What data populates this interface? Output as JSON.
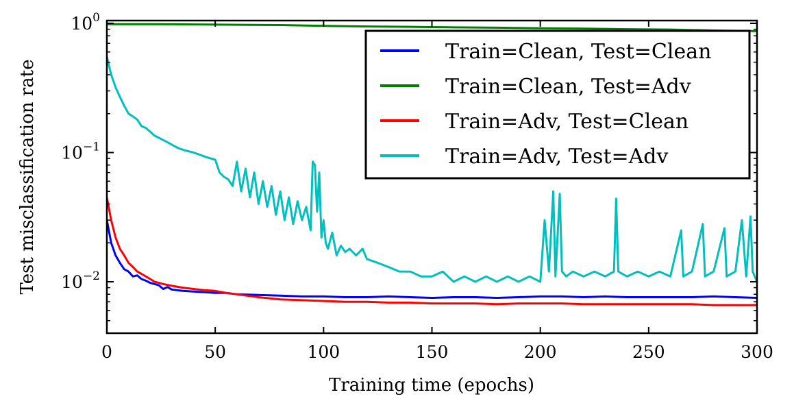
{
  "chart_data": {
    "type": "line",
    "xlabel": "Training time (epochs)",
    "ylabel": "Test misclassification rate",
    "xlim": [
      0,
      300
    ],
    "ylim": [
      0.004,
      1.05
    ],
    "yscale": "log",
    "x_ticks": [
      0,
      50,
      100,
      150,
      200,
      250,
      300
    ],
    "y_ticks": [
      {
        "value": 1,
        "base": "10",
        "exp": "0"
      },
      {
        "value": 0.1,
        "base": "10",
        "exp": "−1"
      },
      {
        "value": 0.01,
        "base": "10",
        "exp": "−2"
      }
    ],
    "grid": false,
    "legend_position": "top-right",
    "series": [
      {
        "name": "Train=Clean, Test=Clean",
        "color": "#0000ff",
        "points": [
          [
            0,
            0.03
          ],
          [
            2,
            0.02
          ],
          [
            4,
            0.016
          ],
          [
            6,
            0.014
          ],
          [
            8,
            0.0125
          ],
          [
            10,
            0.012
          ],
          [
            12,
            0.011
          ],
          [
            14,
            0.0112
          ],
          [
            16,
            0.0105
          ],
          [
            18,
            0.0102
          ],
          [
            20,
            0.0098
          ],
          [
            22,
            0.0096
          ],
          [
            24,
            0.0094
          ],
          [
            26,
            0.0088
          ],
          [
            28,
            0.0091
          ],
          [
            30,
            0.0087
          ],
          [
            35,
            0.0085
          ],
          [
            40,
            0.0084
          ],
          [
            45,
            0.0083
          ],
          [
            50,
            0.0082
          ],
          [
            55,
            0.0082
          ],
          [
            60,
            0.008
          ],
          [
            70,
            0.0079
          ],
          [
            80,
            0.0078
          ],
          [
            90,
            0.0077
          ],
          [
            100,
            0.0077
          ],
          [
            110,
            0.0076
          ],
          [
            120,
            0.0076
          ],
          [
            130,
            0.0077
          ],
          [
            140,
            0.0076
          ],
          [
            150,
            0.0075
          ],
          [
            160,
            0.0076
          ],
          [
            170,
            0.0076
          ],
          [
            180,
            0.0075
          ],
          [
            190,
            0.0076
          ],
          [
            200,
            0.0077
          ],
          [
            210,
            0.0077
          ],
          [
            220,
            0.0076
          ],
          [
            230,
            0.0077
          ],
          [
            240,
            0.0076
          ],
          [
            250,
            0.0076
          ],
          [
            260,
            0.0076
          ],
          [
            270,
            0.0076
          ],
          [
            280,
            0.0077
          ],
          [
            290,
            0.0076
          ],
          [
            300,
            0.0075
          ]
        ]
      },
      {
        "name": "Train=Clean, Test=Adv",
        "color": "#008000",
        "points": [
          [
            0,
            0.985
          ],
          [
            20,
            0.985
          ],
          [
            40,
            0.98
          ],
          [
            60,
            0.975
          ],
          [
            80,
            0.97
          ],
          [
            100,
            0.955
          ],
          [
            120,
            0.945
          ],
          [
            140,
            0.94
          ],
          [
            160,
            0.93
          ],
          [
            180,
            0.925
          ],
          [
            200,
            0.915
          ],
          [
            220,
            0.91
          ],
          [
            240,
            0.9
          ],
          [
            260,
            0.895
          ],
          [
            280,
            0.88
          ],
          [
            300,
            0.87
          ]
        ]
      },
      {
        "name": "Train=Adv, Test=Clean",
        "color": "#ff0000",
        "points": [
          [
            0,
            0.045
          ],
          [
            2,
            0.03
          ],
          [
            4,
            0.022
          ],
          [
            6,
            0.018
          ],
          [
            8,
            0.016
          ],
          [
            10,
            0.014
          ],
          [
            12,
            0.013
          ],
          [
            14,
            0.012
          ],
          [
            16,
            0.0115
          ],
          [
            18,
            0.011
          ],
          [
            20,
            0.0105
          ],
          [
            22,
            0.01
          ],
          [
            24,
            0.0098
          ],
          [
            26,
            0.0096
          ],
          [
            30,
            0.0093
          ],
          [
            35,
            0.009
          ],
          [
            40,
            0.0088
          ],
          [
            45,
            0.0086
          ],
          [
            50,
            0.0085
          ],
          [
            55,
            0.0082
          ],
          [
            60,
            0.008
          ],
          [
            70,
            0.0076
          ],
          [
            80,
            0.0073
          ],
          [
            90,
            0.0072
          ],
          [
            100,
            0.0071
          ],
          [
            110,
            0.007
          ],
          [
            120,
            0.007
          ],
          [
            130,
            0.0069
          ],
          [
            140,
            0.0069
          ],
          [
            150,
            0.0068
          ],
          [
            160,
            0.0068
          ],
          [
            170,
            0.0068
          ],
          [
            180,
            0.0067
          ],
          [
            190,
            0.0068
          ],
          [
            200,
            0.0068
          ],
          [
            210,
            0.0068
          ],
          [
            220,
            0.0067
          ],
          [
            230,
            0.0067
          ],
          [
            240,
            0.0067
          ],
          [
            250,
            0.0067
          ],
          [
            260,
            0.0067
          ],
          [
            270,
            0.0067
          ],
          [
            280,
            0.0066
          ],
          [
            290,
            0.0066
          ],
          [
            300,
            0.0066
          ]
        ]
      },
      {
        "name": "Train=Adv, Test=Adv",
        "color": "#00bfbf",
        "points": [
          [
            0,
            0.55
          ],
          [
            2,
            0.4
          ],
          [
            4,
            0.32
          ],
          [
            6,
            0.27
          ],
          [
            8,
            0.23
          ],
          [
            10,
            0.2
          ],
          [
            12,
            0.19
          ],
          [
            14,
            0.18
          ],
          [
            16,
            0.16
          ],
          [
            18,
            0.155
          ],
          [
            20,
            0.145
          ],
          [
            22,
            0.135
          ],
          [
            24,
            0.13
          ],
          [
            26,
            0.125
          ],
          [
            28,
            0.12
          ],
          [
            30,
            0.115
          ],
          [
            33,
            0.108
          ],
          [
            36,
            0.104
          ],
          [
            40,
            0.1
          ],
          [
            43,
            0.096
          ],
          [
            46,
            0.092
          ],
          [
            50,
            0.088
          ],
          [
            52,
            0.07
          ],
          [
            54,
            0.065
          ],
          [
            56,
            0.062
          ],
          [
            58,
            0.055
          ],
          [
            60,
            0.085
          ],
          [
            62,
            0.05
          ],
          [
            64,
            0.075
          ],
          [
            66,
            0.045
          ],
          [
            68,
            0.07
          ],
          [
            70,
            0.04
          ],
          [
            72,
            0.06
          ],
          [
            74,
            0.038
          ],
          [
            76,
            0.055
          ],
          [
            78,
            0.033
          ],
          [
            80,
            0.05
          ],
          [
            82,
            0.03
          ],
          [
            84,
            0.045
          ],
          [
            86,
            0.028
          ],
          [
            88,
            0.042
          ],
          [
            90,
            0.03
          ],
          [
            92,
            0.038
          ],
          [
            94,
            0.025
          ],
          [
            95,
            0.085
          ],
          [
            96,
            0.08
          ],
          [
            97,
            0.035
          ],
          [
            98,
            0.07
          ],
          [
            99,
            0.022
          ],
          [
            100,
            0.03
          ],
          [
            101,
            0.02
          ],
          [
            102,
            0.018
          ],
          [
            104,
            0.024
          ],
          [
            106,
            0.016
          ],
          [
            108,
            0.019
          ],
          [
            110,
            0.017
          ],
          [
            112,
            0.018
          ],
          [
            115,
            0.016
          ],
          [
            118,
            0.018
          ],
          [
            120,
            0.015
          ],
          [
            125,
            0.014
          ],
          [
            130,
            0.013
          ],
          [
            135,
            0.012
          ],
          [
            140,
            0.012
          ],
          [
            145,
            0.011
          ],
          [
            150,
            0.011
          ],
          [
            155,
            0.012
          ],
          [
            160,
            0.01
          ],
          [
            165,
            0.011
          ],
          [
            170,
            0.01
          ],
          [
            175,
            0.011
          ],
          [
            180,
            0.01
          ],
          [
            185,
            0.011
          ],
          [
            190,
            0.01
          ],
          [
            195,
            0.011
          ],
          [
            200,
            0.01
          ],
          [
            202,
            0.03
          ],
          [
            204,
            0.012
          ],
          [
            206,
            0.05
          ],
          [
            207,
            0.011
          ],
          [
            209,
            0.048
          ],
          [
            210,
            0.012
          ],
          [
            212,
            0.011
          ],
          [
            215,
            0.012
          ],
          [
            220,
            0.011
          ],
          [
            225,
            0.012
          ],
          [
            230,
            0.011
          ],
          [
            234,
            0.012
          ],
          [
            235,
            0.044
          ],
          [
            236,
            0.012
          ],
          [
            240,
            0.011
          ],
          [
            245,
            0.012
          ],
          [
            250,
            0.011
          ],
          [
            255,
            0.012
          ],
          [
            260,
            0.011
          ],
          [
            265,
            0.025
          ],
          [
            266,
            0.011
          ],
          [
            270,
            0.012
          ],
          [
            275,
            0.028
          ],
          [
            276,
            0.011
          ],
          [
            280,
            0.012
          ],
          [
            285,
            0.026
          ],
          [
            286,
            0.011
          ],
          [
            290,
            0.012
          ],
          [
            293,
            0.03
          ],
          [
            295,
            0.011
          ],
          [
            297,
            0.032
          ],
          [
            298,
            0.012
          ],
          [
            300,
            0.01
          ]
        ]
      }
    ]
  }
}
